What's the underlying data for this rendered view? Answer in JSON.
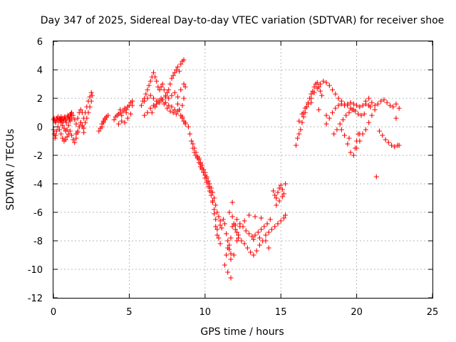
{
  "chart_data": {
    "type": "scatter",
    "title": "Day 347 of 2025, Sidereal Day-to-day VTEC variation (SDTVAR) for receiver shoe",
    "xlabel": "GPS time / hours",
    "ylabel": "SDTVAR / TECUs",
    "xlim": [
      0,
      25
    ],
    "ylim": [
      -12,
      6
    ],
    "xticks": [
      0,
      5,
      10,
      15,
      20,
      25
    ],
    "yticks": [
      -12,
      -10,
      -8,
      -6,
      -4,
      -2,
      0,
      2,
      4,
      6
    ],
    "grid": true,
    "marker": "plus",
    "color": "#ff0000",
    "series": [
      {
        "name": "SDTVAR",
        "x": [
          0.0,
          0.05,
          0.1,
          0.15,
          0.2,
          0.25,
          0.3,
          0.35,
          0.4,
          0.45,
          0.5,
          0.55,
          0.6,
          0.65,
          0.7,
          0.75,
          0.8,
          0.85,
          0.9,
          0.95,
          1.0,
          1.05,
          1.1,
          1.15,
          1.2,
          0.0,
          0.05,
          0.1,
          0.15,
          0.2,
          0.3,
          0.4,
          0.5,
          0.6,
          0.7,
          0.8,
          0.9,
          1.0,
          1.1,
          1.2,
          1.3,
          1.4,
          1.5,
          1.6,
          1.7,
          1.8,
          1.9,
          2.0,
          0.5,
          0.6,
          0.7,
          0.8,
          0.9,
          1.0,
          1.1,
          1.2,
          1.3,
          1.4,
          1.5,
          1.6,
          1.7,
          1.8,
          1.9,
          2.0,
          2.1,
          2.2,
          2.3,
          2.4,
          2.5,
          1.5,
          1.6,
          1.7,
          1.8,
          1.9,
          2.0,
          2.1,
          2.2,
          2.3,
          2.4,
          2.5,
          2.55,
          3.0,
          3.1,
          3.2,
          3.3,
          3.4,
          3.5,
          3.6,
          3.2,
          3.3,
          3.4,
          3.5,
          4.0,
          4.1,
          4.2,
          4.3,
          4.4,
          4.5,
          4.6,
          4.7,
          4.8,
          4.9,
          5.0,
          5.1,
          5.2,
          4.3,
          4.5,
          4.7,
          4.9,
          5.1,
          4.4,
          4.8,
          5.2,
          5.8,
          5.9,
          6.0,
          6.1,
          6.2,
          6.3,
          6.4,
          6.5,
          6.6,
          6.7,
          6.8,
          6.9,
          7.0,
          7.1,
          7.2,
          7.3,
          7.4,
          7.5,
          7.6,
          7.7,
          7.8,
          7.9,
          8.0,
          8.1,
          8.2,
          8.3,
          8.4,
          8.5,
          8.6,
          6.0,
          6.2,
          6.4,
          6.6,
          6.8,
          7.0,
          7.2,
          7.4,
          7.6,
          7.8,
          8.0,
          8.2,
          8.4,
          8.6,
          6.0,
          6.2,
          6.4,
          6.6,
          6.8,
          7.0,
          7.2,
          7.4,
          7.6,
          7.8,
          8.0,
          8.2,
          6.5,
          6.7,
          6.9,
          7.1,
          7.3,
          7.5,
          7.7,
          7.9,
          8.1,
          8.3,
          8.5,
          8.6,
          8.7,
          8.5,
          8.6,
          8.7,
          8.4,
          8.3,
          8.2,
          8.5,
          8.7,
          8.9,
          9.0,
          9.1,
          9.2,
          9.3,
          9.4,
          9.5,
          9.6,
          9.7,
          9.8,
          9.9,
          10.0,
          10.1,
          10.2,
          10.3,
          10.4,
          10.5,
          10.6,
          10.7,
          10.8,
          10.9,
          11.0,
          9.6,
          9.7,
          9.8,
          9.9,
          10.0,
          10.1,
          10.2,
          10.3,
          10.4,
          10.5,
          10.6,
          10.7,
          10.8,
          10.9,
          11.0,
          9.2,
          9.3,
          9.4,
          9.5,
          9.6,
          9.7,
          9.8,
          9.9,
          10.0,
          10.1,
          10.2,
          10.3,
          10.4,
          10.5,
          10.6,
          10.7,
          10.8,
          11.0,
          11.1,
          11.2,
          11.3,
          11.4,
          11.5,
          11.6,
          11.7,
          11.8,
          11.9,
          12.0,
          12.1,
          12.2,
          11.3,
          11.5,
          11.7,
          11.9,
          12.1,
          11.6,
          11.8,
          11.5,
          11.7,
          12.3,
          11.4,
          11.6,
          11.8,
          11.7,
          12.0,
          12.2,
          12.4,
          12.6,
          12.8,
          13.0,
          13.2,
          13.4,
          13.6,
          13.8,
          14.0,
          14.2,
          14.4,
          14.6,
          14.8,
          15.0,
          15.2,
          15.3,
          12.1,
          12.3,
          12.5,
          12.7,
          12.9,
          13.1,
          13.3,
          13.5,
          13.7,
          13.9,
          14.1,
          14.3,
          12.6,
          12.9,
          13.3,
          13.6,
          14.0,
          14.2,
          13.2,
          13.7,
          14.5,
          14.6,
          14.7,
          14.8,
          14.9,
          15.0,
          15.1,
          15.2,
          15.3,
          14.7,
          14.9,
          15.1,
          16.0,
          16.1,
          16.2,
          16.3,
          16.4,
          16.5,
          16.6,
          16.7,
          16.8,
          16.9,
          17.0,
          17.1,
          17.2,
          17.3,
          17.4,
          17.5,
          17.6,
          17.7,
          16.2,
          16.4,
          16.6,
          16.8,
          17.0,
          17.2,
          17.4,
          17.6,
          17.8,
          18.0,
          18.2,
          18.4,
          18.6,
          18.8,
          19.0,
          19.2,
          19.4,
          19.6,
          19.8,
          18.0,
          18.2,
          18.4,
          18.6,
          18.8,
          19.0,
          19.2,
          19.4,
          19.6,
          19.8,
          20.0,
          20.2,
          20.4,
          20.6,
          20.8,
          18.5,
          18.7,
          18.9,
          19.1,
          19.3,
          19.5,
          19.7,
          19.9,
          20.1,
          20.3,
          20.5,
          19.0,
          19.2,
          19.4,
          19.6,
          19.8,
          20.0,
          20.2,
          20.4,
          20.6,
          20.8,
          21.0,
          21.2,
          21.4,
          21.6,
          21.8,
          22.0,
          22.2,
          22.4,
          22.6,
          22.8,
          21.5,
          21.7,
          21.9,
          22.1,
          22.3,
          22.5,
          22.7,
          22.8,
          20.6,
          20.8,
          21.0,
          21.2,
          20.9,
          20.1,
          20.0,
          19.9,
          17.0,
          17.5,
          18.0,
          16.5,
          19.5,
          20.2,
          21.3,
          22.6
        ],
        "y": [
          0.5,
          0.6,
          0.4,
          0.3,
          0.6,
          0.5,
          0.7,
          0.4,
          0.6,
          0.5,
          0.7,
          0.5,
          0.6,
          0.4,
          0.6,
          0.7,
          0.5,
          0.3,
          0.6,
          0.8,
          0.7,
          0.5,
          0.8,
          0.9,
          1.0,
          -0.2,
          -0.5,
          -0.8,
          -0.6,
          -0.3,
          0.0,
          -0.2,
          -0.5,
          -0.8,
          -1.0,
          -0.9,
          -0.7,
          -0.5,
          -0.3,
          -0.6,
          -0.9,
          -1.1,
          -0.8,
          -0.4,
          0.0,
          0.3,
          0.0,
          -0.4,
          0.3,
          0.1,
          -0.1,
          -0.3,
          -0.2,
          0.1,
          0.4,
          0.6,
          0.8,
          0.5,
          0.2,
          0.6,
          1.0,
          1.2,
          1.0,
          0.6,
          1.0,
          1.4,
          1.8,
          2.1,
          2.4,
          -0.5,
          -0.3,
          0.0,
          0.3,
          0.1,
          -0.1,
          0.3,
          0.6,
          1.0,
          1.4,
          1.8,
          2.2,
          -0.3,
          -0.1,
          0.2,
          0.4,
          0.6,
          0.7,
          0.8,
          0.0,
          0.3,
          0.5,
          0.7,
          0.5,
          0.7,
          0.8,
          0.9,
          1.0,
          0.8,
          1.1,
          1.3,
          1.2,
          1.4,
          1.5,
          1.7,
          1.8,
          0.2,
          0.4,
          0.3,
          0.6,
          0.9,
          1.2,
          1.0,
          1.5,
          1.5,
          1.8,
          2.0,
          2.3,
          2.6,
          2.9,
          3.2,
          3.5,
          3.8,
          3.5,
          3.2,
          2.8,
          2.6,
          2.8,
          3.0,
          2.6,
          2.2,
          2.4,
          2.6,
          3.0,
          3.4,
          3.6,
          3.8,
          4.0,
          4.2,
          3.9,
          4.4,
          4.6,
          4.7,
          1.8,
          2.0,
          2.2,
          2.0,
          1.8,
          1.7,
          1.9,
          2.1,
          2.0,
          2.2,
          2.4,
          2.1,
          2.6,
          3.0,
          0.8,
          1.0,
          1.3,
          1.5,
          1.6,
          1.8,
          1.9,
          1.7,
          1.5,
          1.4,
          1.2,
          1.1,
          1.0,
          1.4,
          1.8,
          2.0,
          1.6,
          1.3,
          1.1,
          1.0,
          0.9,
          1.2,
          1.5,
          2.0,
          2.8,
          0.7,
          0.4,
          0.2,
          0.8,
          1.2,
          1.6,
          0.6,
          0.3,
          0.0,
          -0.5,
          -1.0,
          -1.5,
          -1.8,
          -2.0,
          -2.2,
          -2.5,
          -2.8,
          -3.0,
          -3.2,
          -3.4,
          -3.6,
          -3.8,
          -4.0,
          -4.3,
          -4.6,
          -5.0,
          -5.5,
          -6.0,
          -6.3,
          -6.6,
          -2.2,
          -2.5,
          -2.7,
          -3.0,
          -3.2,
          -3.5,
          -3.8,
          -4.2,
          -4.6,
          -5.2,
          -5.8,
          -6.5,
          -7.2,
          -7.8,
          -8.2,
          -1.2,
          -1.5,
          -1.8,
          -2.1,
          -2.3,
          -2.6,
          -2.9,
          -3.2,
          -3.6,
          -3.9,
          -4.2,
          -4.5,
          -4.8,
          -5.3,
          -6.1,
          -7.0,
          -7.6,
          -6.9,
          -7.1,
          -6.5,
          -6.8,
          -7.5,
          -8.0,
          -8.3,
          -8.9,
          -7.0,
          -6.8,
          -6.9,
          -7.4,
          -7.8,
          -9.7,
          -10.2,
          -10.6,
          -9.0,
          -8.0,
          -6.0,
          -5.3,
          -8.5,
          -7.8,
          -7.0,
          -9.0,
          -8.6,
          -6.3,
          -9.3,
          -7.2,
          -7.6,
          -8.0,
          -8.2,
          -8.5,
          -8.8,
          -9.0,
          -8.7,
          -8.3,
          -8.0,
          -7.6,
          -7.4,
          -7.2,
          -7.0,
          -6.8,
          -6.6,
          -6.4,
          -6.2,
          -6.5,
          -6.8,
          -7.0,
          -7.3,
          -7.5,
          -7.7,
          -7.6,
          -7.4,
          -7.2,
          -7.0,
          -6.8,
          -6.5,
          -6.6,
          -6.2,
          -6.3,
          -7.8,
          -8.0,
          -8.5,
          -7.9,
          -6.4,
          -4.5,
          -4.8,
          -5.0,
          -4.6,
          -4.3,
          -4.1,
          -4.4,
          -4.7,
          -4.0,
          -5.5,
          -5.2,
          -4.9,
          -1.3,
          -0.8,
          -0.5,
          -0.2,
          0.3,
          0.7,
          1.0,
          1.4,
          1.7,
          2.0,
          2.3,
          2.5,
          2.8,
          3.0,
          3.1,
          2.8,
          2.5,
          2.2,
          0.4,
          0.9,
          1.3,
          1.6,
          2.0,
          2.4,
          2.7,
          3.0,
          3.2,
          3.1,
          2.9,
          2.6,
          2.3,
          2.0,
          1.8,
          1.6,
          1.5,
          1.3,
          1.2,
          0.2,
          0.6,
          1.0,
          1.3,
          1.5,
          1.6,
          1.5,
          1.6,
          1.7,
          1.6,
          1.5,
          1.4,
          1.5,
          1.6,
          1.5,
          -0.5,
          -0.2,
          0.2,
          0.5,
          0.8,
          1.0,
          1.2,
          1.1,
          0.9,
          0.8,
          0.9,
          -0.2,
          -0.6,
          -1.2,
          -1.8,
          -2.0,
          -1.5,
          -1.0,
          -0.5,
          -0.2,
          0.3,
          0.8,
          1.2,
          1.6,
          1.8,
          1.9,
          1.7,
          1.5,
          1.4,
          1.6,
          1.3,
          -0.3,
          -0.6,
          -0.9,
          -1.1,
          -1.3,
          -1.4,
          -1.3,
          -1.3,
          1.8,
          2.0,
          1.7,
          1.5,
          1.4,
          -0.5,
          -1.0,
          -1.5,
          1.7,
          1.2,
          0.8,
          1.0,
          -0.8,
          -0.5,
          -3.5,
          0.6
        ]
      }
    ]
  }
}
